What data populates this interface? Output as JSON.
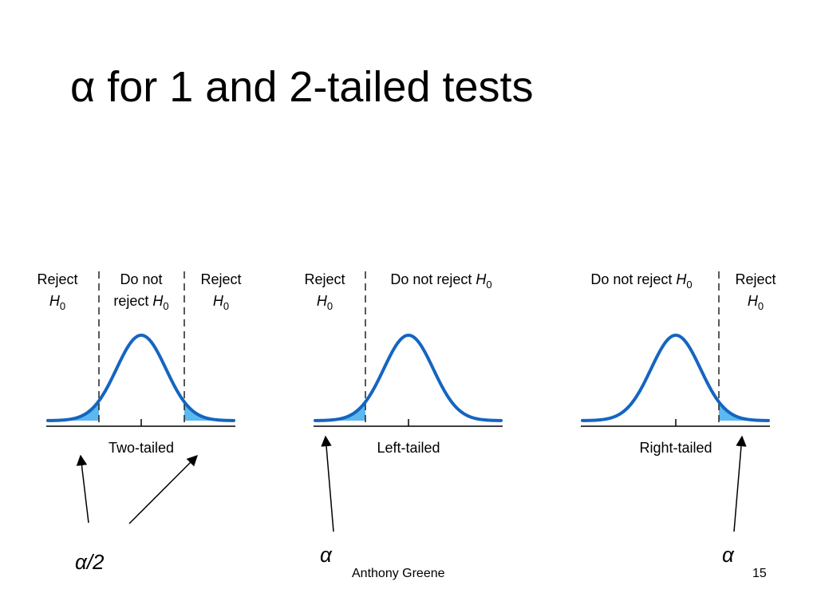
{
  "title": "α for 1 and 2-tailed tests",
  "colors": {
    "curve": "#1565c0",
    "tail_fill": "#5bb8f0",
    "dashed_line": "#222222",
    "text": "#000000"
  },
  "panels": [
    {
      "caption": "Two-tailed",
      "regions": [
        {
          "lines": [
            "Reject",
            "H0"
          ]
        },
        {
          "lines": [
            "Do not",
            "reject H0"
          ]
        },
        {
          "lines": [
            "Reject",
            "H0"
          ]
        }
      ]
    },
    {
      "caption": "Left-tailed",
      "regions": [
        {
          "lines": [
            "Reject",
            "H0"
          ]
        },
        {
          "lines": [
            "Do not reject H0"
          ]
        }
      ]
    },
    {
      "caption": "Right-tailed",
      "regions": [
        {
          "lines": [
            "Do not reject H0"
          ]
        },
        {
          "lines": [
            "Reject",
            "H0"
          ]
        }
      ]
    }
  ],
  "annotations": [
    {
      "label": "α/2"
    },
    {
      "label": "α"
    },
    {
      "label": "α"
    }
  ],
  "footer": {
    "author": "Anthony Greene",
    "page": "15"
  }
}
